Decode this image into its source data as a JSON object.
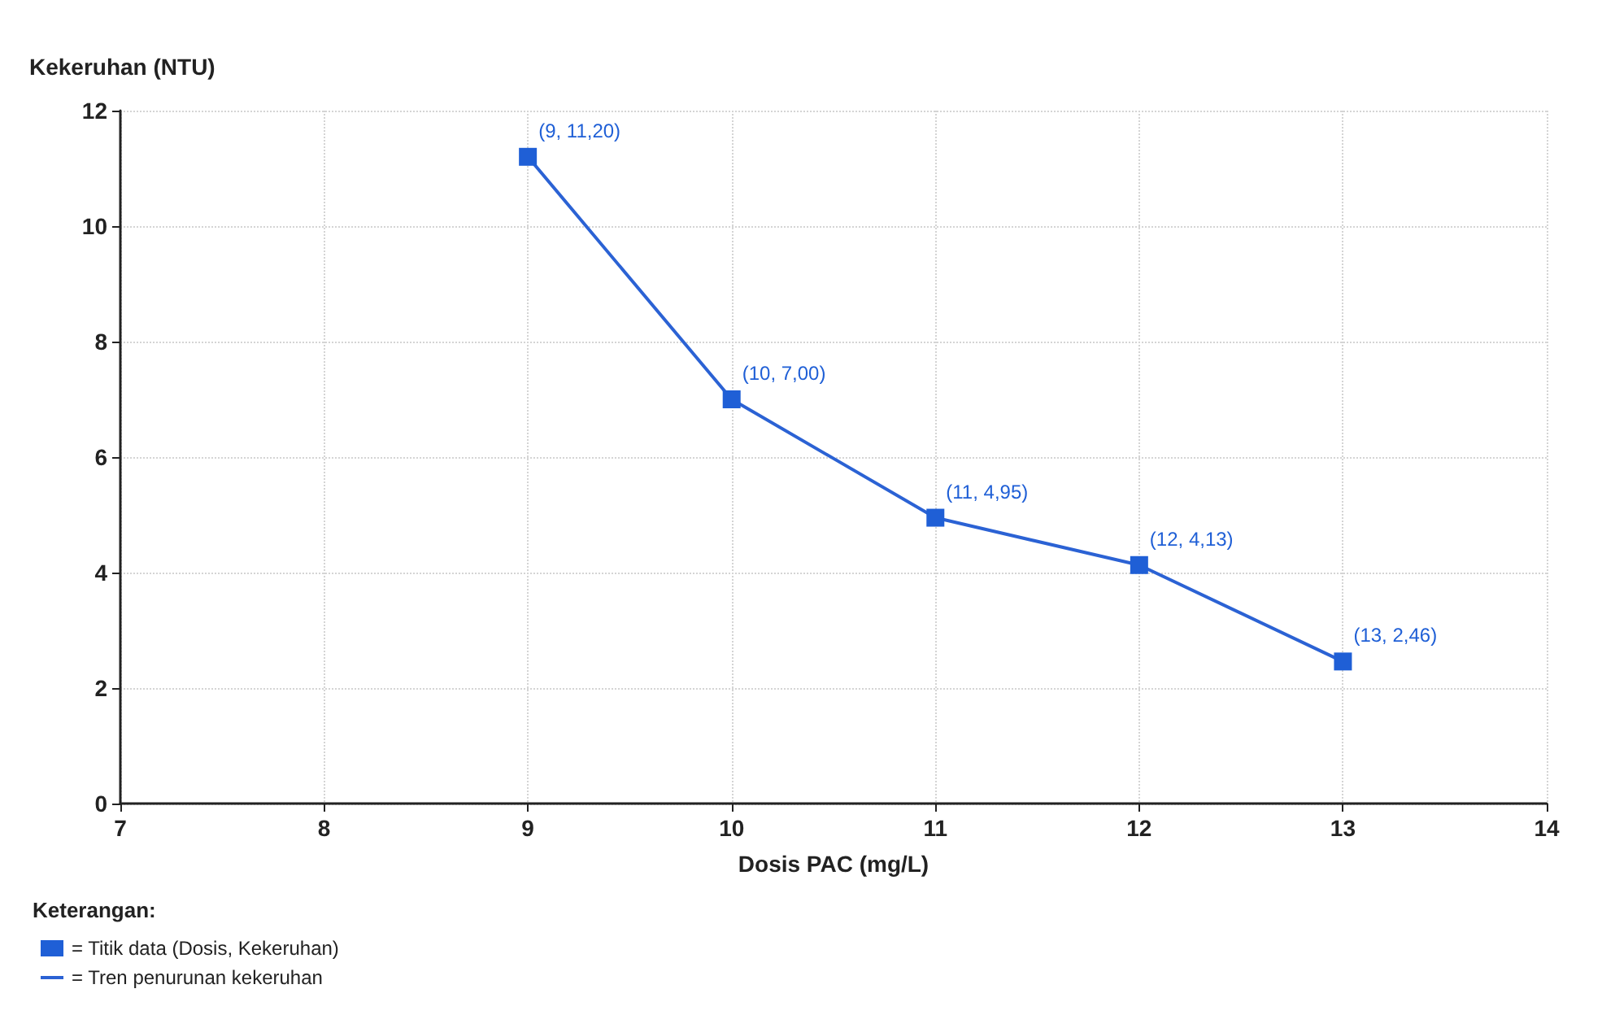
{
  "chart_data": {
    "type": "line",
    "x": [
      9,
      10,
      11,
      12,
      13
    ],
    "xlabel": "Dosis PAC (mg/L)",
    "ylabel": "Kekeruhan (NTU)",
    "xlim": [
      7,
      14
    ],
    "xticks": [
      7,
      8,
      9,
      10,
      11,
      12,
      13,
      14
    ],
    "ylim": [
      0,
      12
    ],
    "yticks": [
      0,
      2,
      4,
      6,
      8,
      10,
      12
    ],
    "grid": true,
    "legend": "bottom left",
    "legend_title": "Keterangan:",
    "series": [
      {
        "name": "= Titik data (Dosis, Kekeruhan)",
        "type": "scatter",
        "marker": "square",
        "color": "#1f5fd6",
        "values": [
          11.2,
          7.0,
          4.95,
          4.13,
          2.46
        ],
        "value_labels": [
          "(9, 11,20)",
          "(10, 7,00)",
          "(11, 4,95)",
          "(12, 4,13)",
          "(13, 2,46)"
        ]
      },
      {
        "name": "= Tren penurunan kekeruhan",
        "marker": "none",
        "color": "#2b62d4",
        "values": [
          11.2,
          7.0,
          4.95,
          4.13,
          2.46
        ]
      }
    ]
  }
}
